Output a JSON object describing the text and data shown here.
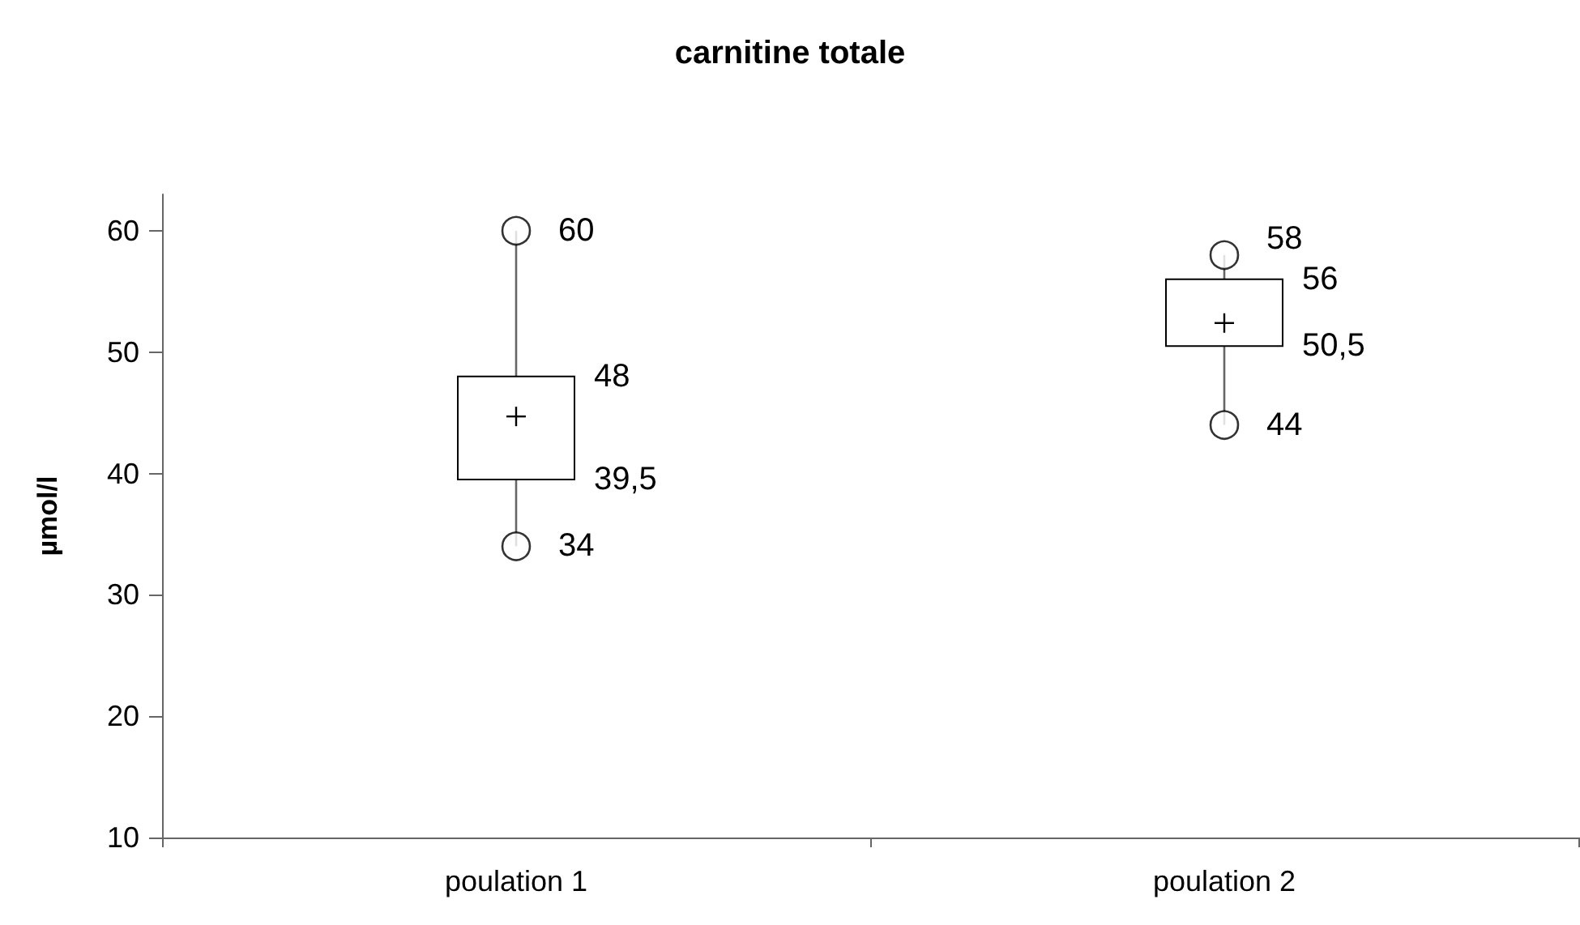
{
  "chart_data": {
    "type": "box",
    "title": "carnitine totale",
    "ylabel": "µmol/l",
    "categories": [
      "poulation 1",
      "poulation 2"
    ],
    "boxes": [
      {
        "low": 34,
        "q1": 39.5,
        "median": 44.7,
        "q3": 48,
        "high": 60,
        "outliers": [
          60,
          34
        ]
      },
      {
        "low": 44,
        "q1": 50.5,
        "median": 52.4,
        "q3": 56,
        "high": 58,
        "outliers": [
          58,
          44
        ]
      }
    ],
    "annotations": [
      {
        "text": "60",
        "x": "poulation 1",
        "y": 60
      },
      {
        "text": "48",
        "x": "poulation 1",
        "y": 48
      },
      {
        "text": "39,5",
        "x": "poulation 1",
        "y": 39.5
      },
      {
        "text": "34",
        "x": "poulation 1",
        "y": 34
      },
      {
        "text": "58",
        "x": "poulation 2",
        "y": 58
      },
      {
        "text": "56",
        "x": "poulation 2",
        "y": 56
      },
      {
        "text": "50,5",
        "x": "poulation 2",
        "y": 50.5
      },
      {
        "text": "44",
        "x": "poulation 2",
        "y": 44
      }
    ],
    "ylim": [
      10,
      63
    ],
    "yticks": [
      10,
      20,
      30,
      40,
      50,
      60
    ],
    "grid": false,
    "legend": false,
    "marker": "circle"
  }
}
